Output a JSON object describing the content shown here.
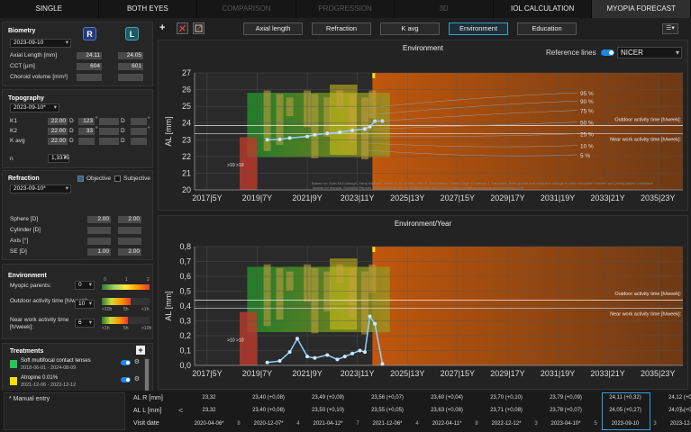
{
  "tabs": [
    {
      "label": "SINGLE",
      "state": "normal"
    },
    {
      "label": "BOTH EYES",
      "state": "normal"
    },
    {
      "label": "COMPARISON",
      "state": "dim"
    },
    {
      "label": "PROGRESSION",
      "state": "dim"
    },
    {
      "label": "3D",
      "state": "dim"
    },
    {
      "label": "IOL CALCULATION",
      "state": "normal"
    },
    {
      "label": "MYOPIA FORECAST",
      "state": "active"
    }
  ],
  "biometry": {
    "title": "Biometry",
    "date": "2023-09-10",
    "eye_r": "R",
    "eye_l": "L",
    "rows": [
      {
        "label": "Axial Length [mm]",
        "r": "24.11",
        "l": "24.05"
      },
      {
        "label": "CCT [µm]",
        "r": "604",
        "l": "601"
      },
      {
        "label": "Choroid volume [mm³]",
        "r": "",
        "l": ""
      }
    ]
  },
  "topography": {
    "title": "Topography",
    "date": "2023-09-10*",
    "rows": [
      {
        "label": "K1",
        "r": "22.00",
        "unit": "D",
        "axis": "123",
        "axis_unit": "°",
        "l": "",
        "lunit": "D",
        "laxis": "",
        "laxis_unit": "°"
      },
      {
        "label": "K2",
        "r": "22.00",
        "unit": "D",
        "axis": "33",
        "axis_unit": "°",
        "l": "",
        "lunit": "D",
        "laxis": "",
        "laxis_unit": "°"
      },
      {
        "label": "K avg",
        "r": "22.00",
        "unit": "D",
        "axis": "",
        "axis_unit": "",
        "l": "",
        "lunit": "D",
        "laxis": "",
        "laxis_unit": ""
      }
    ],
    "n_label": "n",
    "n_value": "1,3375"
  },
  "refraction": {
    "title": "Refraction",
    "objective": "Objective",
    "subjective": "Subjective",
    "date": "2023-09-10*",
    "rows": [
      {
        "label": "Sphere [D]",
        "r": "2.00",
        "l": "2.00"
      },
      {
        "label": "Cylinder [D]",
        "r": "",
        "l": ""
      },
      {
        "label": "Axis [°]",
        "r": "",
        "l": ""
      },
      {
        "label": "SE [D]",
        "r": "1.00",
        "l": "2.00"
      }
    ]
  },
  "environment": {
    "title": "Environment",
    "myopic_parents_label": "Myopic parents:",
    "myopic_parents": "0",
    "scale_ticks": [
      "0",
      "1",
      "2"
    ],
    "outdoor_label": "Outdoor activity time [h/week]:",
    "outdoor": "10",
    "outdoor_ticks": [
      ">10h",
      "5h",
      "<1h"
    ],
    "nearwork_label": "Near work activity time [h/week]:",
    "nearwork": "6",
    "nearwork_ticks": [
      "<1h",
      "5h",
      ">10h"
    ]
  },
  "treatments": {
    "title": "Treatments",
    "items": [
      {
        "name": "Soft multifocal contact lenses",
        "dates": "2018-06-01 - 2024-08-09",
        "color": "#22c55e"
      },
      {
        "name": "Atropine 0.01%",
        "dates": "2021-12-06 - 2022-12-12",
        "color": "#ffe000"
      },
      {
        "name": "Ortho keratology contact lenses",
        "dates": "2023-04-10 -",
        "color": "#f08a00"
      }
    ]
  },
  "toolbar": {
    "buttons": [
      "Axial length",
      "Refraction",
      "K avg",
      "Environment",
      "Education"
    ],
    "active": "Environment",
    "ref_lines_label": "Reference lines",
    "ref_select": "NICER"
  },
  "chart1": {
    "title": "Environment",
    "ylabel": "AL [mm]",
    "y_ticks": [
      "27",
      "26",
      "25",
      "24",
      "23",
      "22",
      "21",
      "20"
    ],
    "x_ticks": [
      "2017|5Y",
      "2019|7Y",
      "2021|9Y",
      "2023|11Y",
      "2025|13Y",
      "2027|15Y",
      "2029|17Y",
      "2031|19Y",
      "2033|21Y",
      "2035|23Y"
    ],
    "percentiles": [
      "95 %",
      "90 %",
      "75 %",
      "50 %",
      "25 %",
      "10 %",
      "5 %"
    ],
    "outdoor_note": "Outdoor activity time [h/week]:",
    "near_note": "Near work activity time [h/week]:",
    "left_note": ">10 >10",
    "citation": "Based on: Gaia McCullough, Garry Adhikari, Karen M. M. Brodie, Julio E. McClelland, Lesley Doyle & Kathryn J. Saunders. Axial growth and refractive change in white european children and young adults: predictive factors for myopia. Scientific Reports 2020 10:15189 doi: 10.1038/s41598-020-72240-y https://creativecommons.org/licenses/by/4.0/"
  },
  "chart2": {
    "title": "Environment/Year",
    "ylabel": "AL [mm]",
    "y_ticks": [
      "0,8",
      "0,7",
      "0,6",
      "0,5",
      "0,4",
      "0,3",
      "0,2",
      "0,1",
      "0,0"
    ],
    "x_ticks": [
      "2017|5Y",
      "2019|7Y",
      "2021|9Y",
      "2023|11Y",
      "2025|13Y",
      "2027|15Y",
      "2029|17Y",
      "2031|19Y",
      "2033|21Y",
      "2035|23Y"
    ],
    "outdoor_note": "Outdoor activity time [h/week]:",
    "near_note": "Near work activity time [h/week]:",
    "left_note": ">10 >10"
  },
  "chart_data": [
    {
      "type": "line",
      "title": "Environment",
      "ylabel": "AL [mm]",
      "ylim": [
        20,
        27
      ],
      "xlim": [
        2016.5,
        2036
      ],
      "series": [
        {
          "values": [
            [
              2019.4,
              23.0
            ],
            [
              2019.9,
              23.02
            ],
            [
              2020.3,
              23.1
            ],
            [
              2021.0,
              23.2
            ],
            [
              2021.3,
              23.3
            ],
            [
              2021.8,
              23.38
            ],
            [
              2022.3,
              23.45
            ],
            [
              2022.8,
              23.56
            ],
            [
              2023.3,
              23.65
            ],
            [
              2023.5,
              23.79
            ],
            [
              2023.7,
              24.11
            ],
            [
              2024.0,
              24.12
            ]
          ]
        }
      ]
    },
    {
      "type": "line",
      "title": "Environment/Year",
      "ylabel": "AL [mm]",
      "ylim": [
        0,
        0.8
      ],
      "xlim": [
        2016.5,
        2036
      ],
      "series": [
        {
          "values": [
            [
              2019.4,
              0.02
            ],
            [
              2019.9,
              0.03
            ],
            [
              2020.3,
              0.09
            ],
            [
              2020.6,
              0.18
            ],
            [
              2021.0,
              0.06
            ],
            [
              2021.3,
              0.05
            ],
            [
              2021.8,
              0.07
            ],
            [
              2022.2,
              0.04
            ],
            [
              2022.5,
              0.06
            ],
            [
              2022.8,
              0.08
            ],
            [
              2023.1,
              0.1
            ],
            [
              2023.3,
              0.09
            ],
            [
              2023.5,
              0.33
            ],
            [
              2023.7,
              0.28
            ],
            [
              2024.0,
              0.01
            ]
          ]
        }
      ]
    }
  ],
  "visits": {
    "al_r_label": "AL R [mm]",
    "al_l_label": "AL L [mm]",
    "visit_label": "Visit date",
    "manual_entry": "* Manual entry",
    "cols": [
      {
        "r": "23,32",
        "l": "23,32",
        "date": "2020-04-06*",
        "gap": "8"
      },
      {
        "r": "23,40 (+0,08)",
        "l": "23,40 (+0,08)",
        "date": "2020-12-07*",
        "gap": "4"
      },
      {
        "r": "23,49 (+0,09)",
        "l": "23,50 (+0,10)",
        "date": "2021-04-12*",
        "gap": "7"
      },
      {
        "r": "23,56 (+0,07)",
        "l": "23,55 (+0,05)",
        "date": "2021-12-06*",
        "gap": "4"
      },
      {
        "r": "23,60 (+0,04)",
        "l": "23,63 (+0,08)",
        "date": "2022-04-11*",
        "gap": "8"
      },
      {
        "r": "23,70 (+0,10)",
        "l": "23,71 (+0,08)",
        "date": "2022-12-12*",
        "gap": "3"
      },
      {
        "r": "23,79 (+0,09)",
        "l": "23,78 (+0,07)",
        "date": "2023-04-10*",
        "gap": "5"
      },
      {
        "r": "24,11 (+0,32)",
        "l": "24,05 (+0,27)",
        "date": "2023-09-10",
        "gap": "3"
      },
      {
        "r": "24,12 (+0,01)",
        "l": "24,07 (+0,02)",
        "date": "2023-12-11*",
        "gap": ""
      }
    ],
    "selected": 7
  }
}
